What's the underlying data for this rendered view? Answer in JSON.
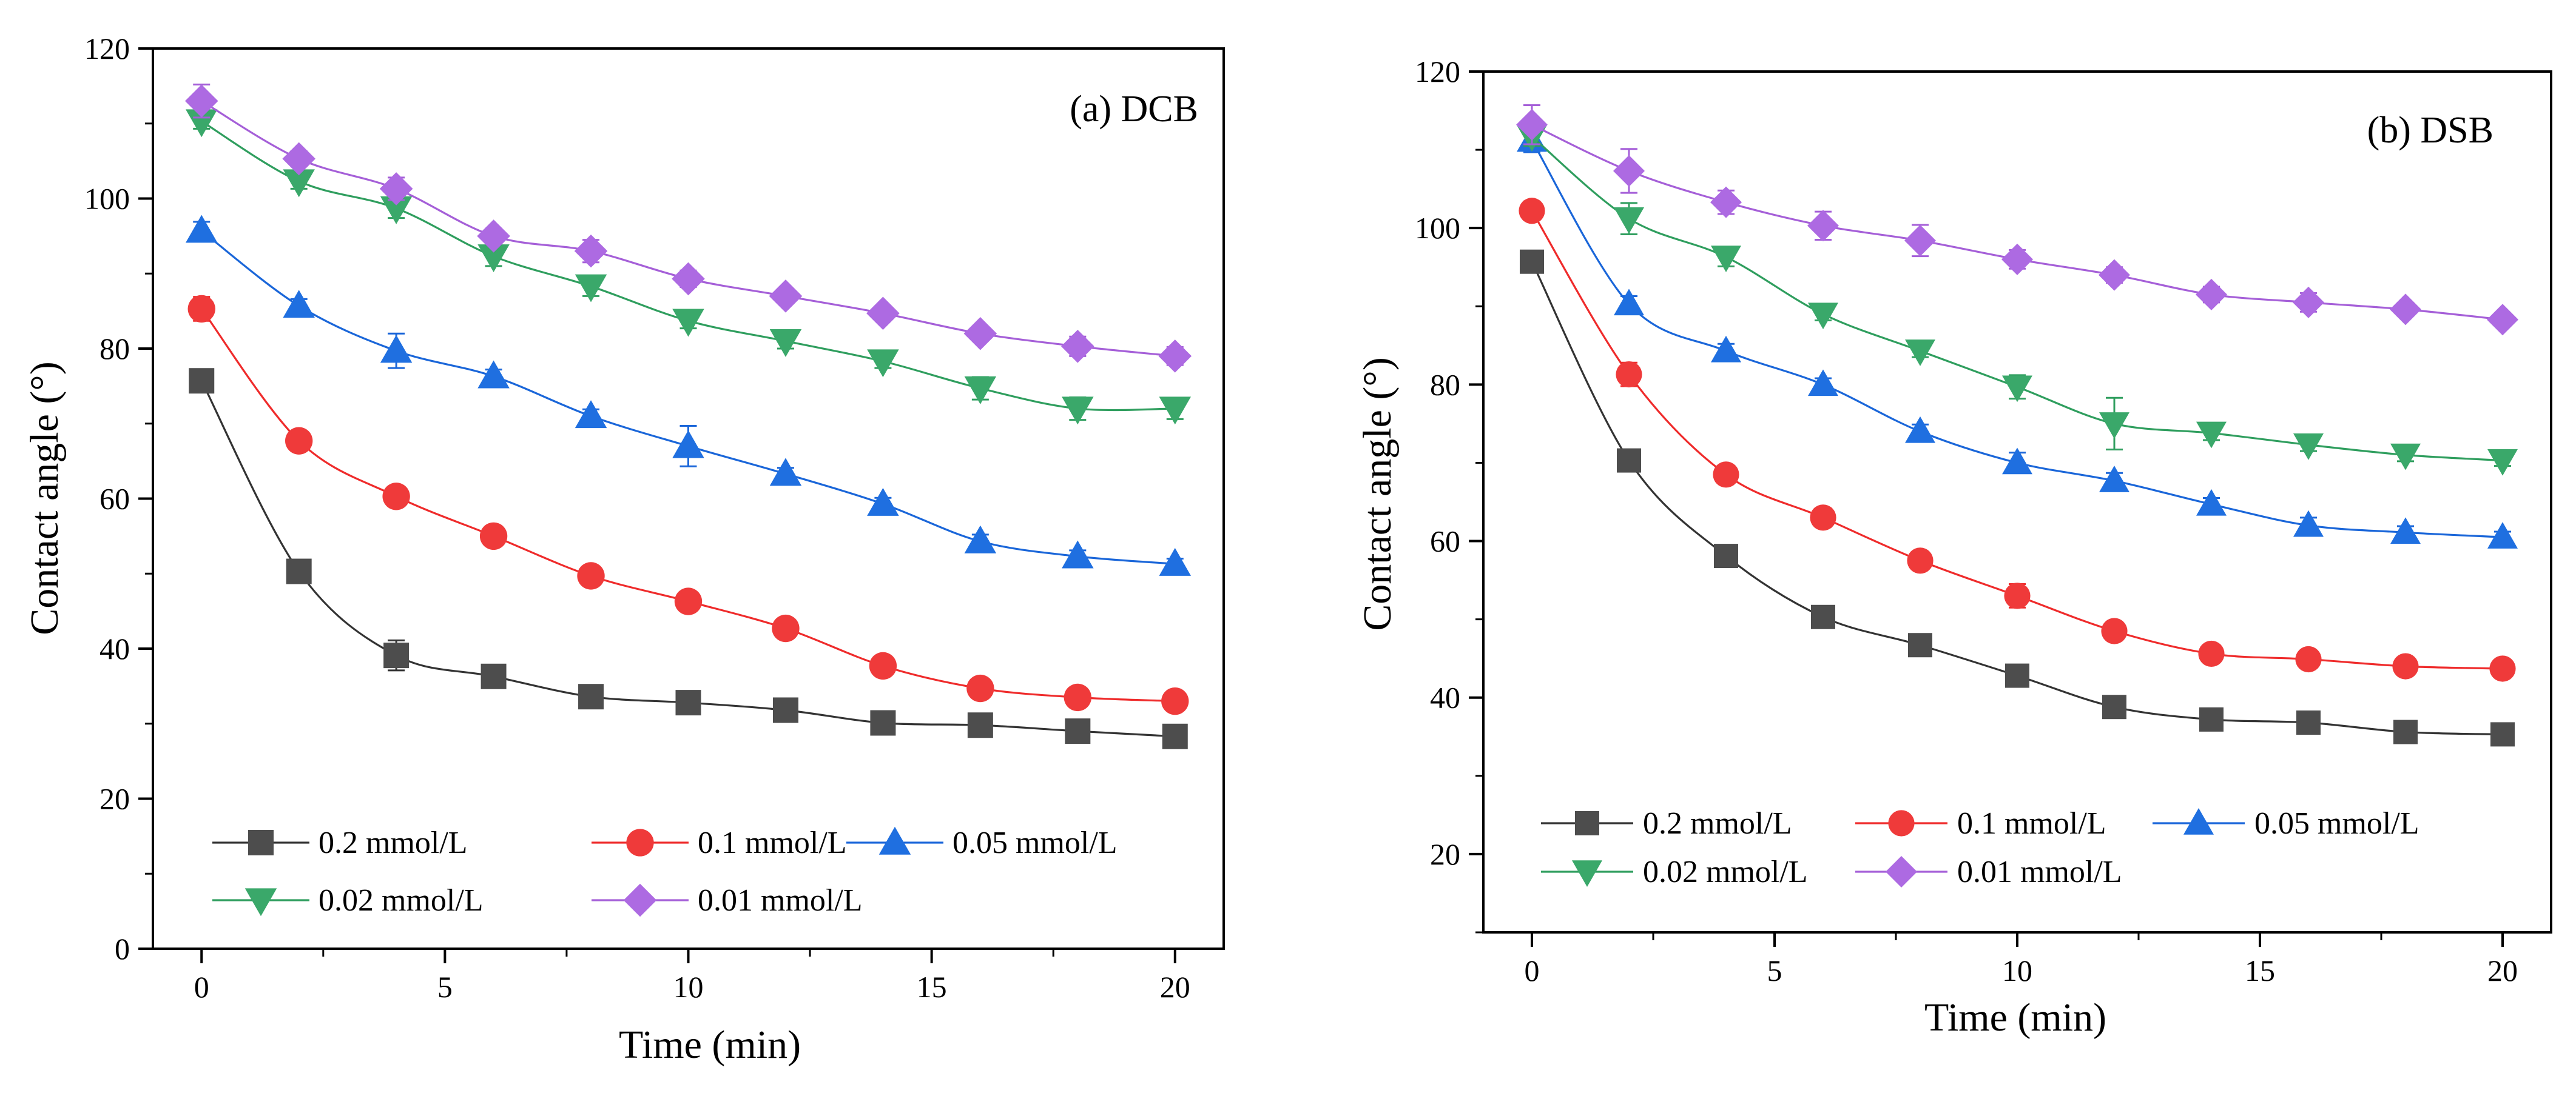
{
  "chart_data": [
    {
      "type": "line",
      "title": "(a) DCB",
      "xlabel": "Time (min)",
      "ylabel": "Contact angle (°)",
      "xlim": [
        -1,
        21
      ],
      "ylim": [
        0,
        120
      ],
      "xticks": [
        0,
        5,
        10,
        15,
        20
      ],
      "yticks": [
        0,
        20,
        40,
        60,
        80,
        100,
        120
      ],
      "xtick_labels": [
        "0",
        "5",
        "10",
        "15",
        "20"
      ],
      "ytick_labels": [
        "0",
        "20",
        "40",
        "60",
        "80",
        "100",
        "120"
      ],
      "grid": false,
      "legend_position": "bottom-left",
      "x": [
        0,
        2,
        4,
        6,
        8,
        10,
        12,
        14,
        16,
        18,
        20
      ],
      "series": [
        {
          "name": "0.2 mmol/L",
          "marker": "square",
          "color": "#333333",
          "marker_color": "#4d4d4d",
          "values": [
            75.7,
            50.3,
            39.1,
            36.3,
            33.6,
            32.8,
            31.8,
            30.1,
            29.8,
            29.0,
            28.3
          ],
          "errors": [
            0.8,
            1.4,
            2.0,
            0.9,
            0.6,
            0.5,
            0.6,
            0.5,
            0.6,
            0.6,
            0.7
          ]
        },
        {
          "name": "0.1 mmol/L",
          "marker": "circle",
          "color": "#ef2b2b",
          "marker_color": "#ef3a3a",
          "values": [
            85.3,
            67.7,
            60.3,
            55.0,
            49.7,
            46.3,
            42.7,
            37.7,
            34.7,
            33.5,
            33.0
          ],
          "errors": [
            1.6,
            1.2,
            0.8,
            0.7,
            0.8,
            0.7,
            0.8,
            0.8,
            0.7,
            0.6,
            0.7
          ]
        },
        {
          "name": "0.05 mmol/L",
          "marker": "triangle-up",
          "color": "#1a66d9",
          "marker_color": "#1f6fe0",
          "values": [
            95.7,
            85.7,
            79.7,
            76.3,
            71.0,
            67.0,
            63.3,
            59.3,
            54.3,
            52.3,
            51.3
          ],
          "errors": [
            1.2,
            0.9,
            2.3,
            0.9,
            0.9,
            2.7,
            0.8,
            0.8,
            0.9,
            0.8,
            0.7
          ]
        },
        {
          "name": "0.02 mmol/L",
          "marker": "triangle-down",
          "color": "#2f9e5e",
          "marker_color": "#3aa86a",
          "values": [
            110.3,
            102.3,
            98.7,
            92.3,
            88.3,
            83.7,
            81.0,
            78.3,
            74.7,
            72.0,
            72.0
          ],
          "errors": [
            1.0,
            1.0,
            1.3,
            1.3,
            1.3,
            1.0,
            1.0,
            0.9,
            1.5,
            1.5,
            1.4
          ]
        },
        {
          "name": "0.01 mmol/L",
          "marker": "diamond",
          "color": "#a55fd8",
          "marker_color": "#ad6ae2",
          "values": [
            113.0,
            105.3,
            101.3,
            95.0,
            93.0,
            89.3,
            87.0,
            84.7,
            82.0,
            80.3,
            79.0
          ],
          "errors": [
            2.2,
            1.0,
            1.5,
            1.0,
            1.5,
            1.1,
            0.9,
            0.8,
            0.9,
            1.3,
            1.2
          ]
        }
      ]
    },
    {
      "type": "line",
      "title": "(b) DSB",
      "xlabel": "Time (min)",
      "ylabel": "Contact angle (°)",
      "xlim": [
        -1,
        21
      ],
      "ylim": [
        10,
        120
      ],
      "xticks": [
        0,
        5,
        10,
        15,
        20
      ],
      "yticks": [
        20,
        40,
        60,
        80,
        100,
        120
      ],
      "xtick_labels": [
        "0",
        "5",
        "10",
        "15",
        "20"
      ],
      "ytick_labels": [
        "20",
        "40",
        "60",
        "80",
        "100",
        "120"
      ],
      "grid": false,
      "legend_position": "bottom-left",
      "x": [
        0,
        2,
        4,
        6,
        8,
        10,
        12,
        14,
        16,
        18,
        20
      ],
      "series": [
        {
          "name": "0.2 mmol/L",
          "marker": "square",
          "color": "#333333",
          "marker_color": "#4d4d4d",
          "values": [
            95.7,
            70.3,
            58.1,
            50.3,
            46.7,
            42.8,
            38.8,
            37.2,
            36.8,
            35.6,
            35.3
          ],
          "errors": [
            0.9,
            0.9,
            0.7,
            0.8,
            0.7,
            0.7,
            0.8,
            0.6,
            0.6,
            0.6,
            0.6
          ]
        },
        {
          "name": "0.1 mmol/L",
          "marker": "circle",
          "color": "#ef2b2b",
          "marker_color": "#ef3a3a",
          "values": [
            102.2,
            81.3,
            68.5,
            63.0,
            57.5,
            53.0,
            48.5,
            45.6,
            44.9,
            44.0,
            43.7
          ],
          "errors": [
            1.2,
            1.5,
            0.8,
            1.2,
            0.8,
            1.5,
            1.2,
            0.7,
            0.7,
            0.7,
            0.6
          ]
        },
        {
          "name": "0.05 mmol/L",
          "marker": "triangle-up",
          "color": "#1a66d9",
          "marker_color": "#1f6fe0",
          "values": [
            111.2,
            90.3,
            84.3,
            80.0,
            74.0,
            70.0,
            67.7,
            64.7,
            62.0,
            61.1,
            60.5
          ],
          "errors": [
            1.5,
            1.0,
            0.9,
            0.8,
            0.9,
            1.3,
            1.0,
            0.8,
            1.0,
            0.8,
            0.7
          ]
        },
        {
          "name": "0.02 mmol/L",
          "marker": "triangle-down",
          "color": "#2f9e5e",
          "marker_color": "#3aa86a",
          "values": [
            111.7,
            101.2,
            96.3,
            89.0,
            84.3,
            79.7,
            75.0,
            73.8,
            72.3,
            71.0,
            70.3
          ],
          "errors": [
            1.2,
            2.0,
            1.2,
            0.8,
            0.8,
            1.5,
            3.3,
            0.9,
            0.8,
            0.8,
            0.7
          ]
        },
        {
          "name": "0.01 mmol/L",
          "marker": "diamond",
          "color": "#a55fd8",
          "marker_color": "#ad6ae2",
          "values": [
            113.2,
            107.3,
            103.3,
            100.3,
            98.4,
            96.0,
            94.0,
            91.5,
            90.5,
            89.6,
            88.3
          ],
          "errors": [
            2.5,
            2.8,
            1.5,
            1.8,
            2.0,
            1.2,
            1.0,
            1.0,
            1.2,
            0.8,
            0.8
          ]
        }
      ]
    }
  ]
}
